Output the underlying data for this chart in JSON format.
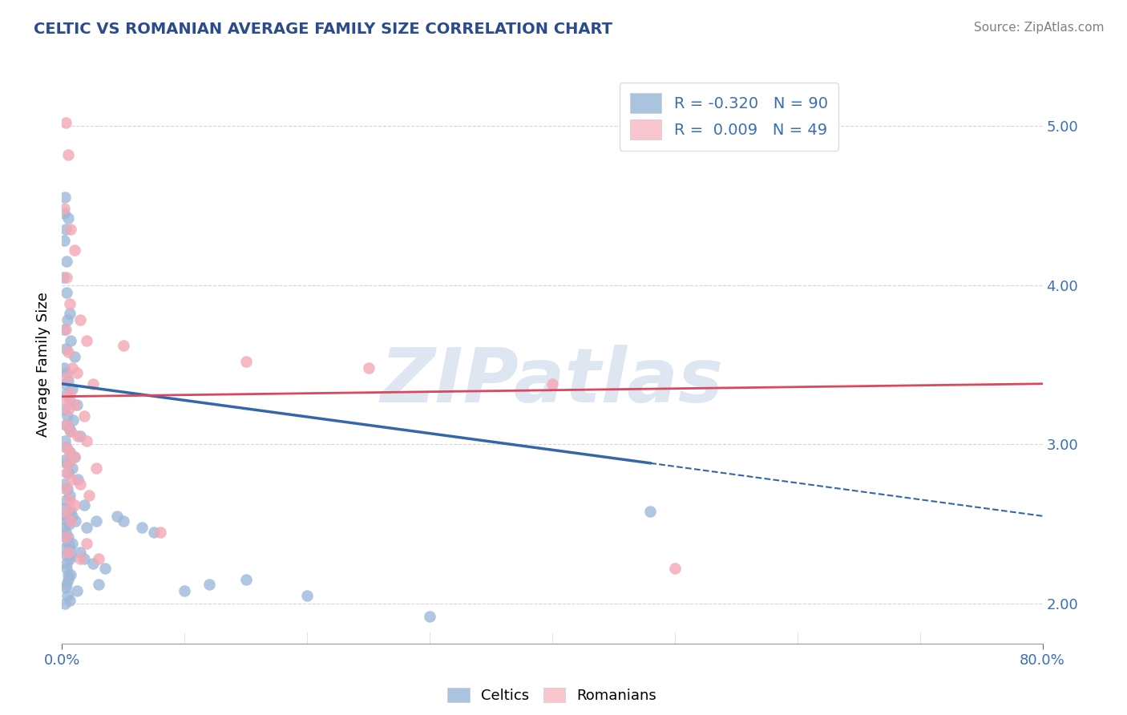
{
  "title": "CELTIC VS ROMANIAN AVERAGE FAMILY SIZE CORRELATION CHART",
  "source": "Source: ZipAtlas.com",
  "ylabel": "Average Family Size",
  "ylim": [
    1.75,
    5.25
  ],
  "xlim": [
    0.0,
    80.0
  ],
  "yticks": [
    2.0,
    3.0,
    4.0,
    5.0
  ],
  "legend_labels": [
    "Celtics",
    "Romanians"
  ],
  "legend_r": [
    -0.32,
    0.009
  ],
  "legend_n": [
    90,
    49
  ],
  "celtics_color": "#9eb8d9",
  "romanians_color": "#f4a7b5",
  "celtics_line_color": "#3466aa",
  "romanians_line_color": "#d9485e",
  "celtics_legend_color": "#aac4e0",
  "romanians_legend_color": "#f9c5ce",
  "watermark": "ZIPatlas",
  "watermark_color": "#c8d8e8",
  "celtics_line_x": [
    0.0,
    80.0
  ],
  "celtics_line_y": [
    3.38,
    2.55
  ],
  "celtics_solid_end_x": 48.0,
  "romanians_line_x": [
    0.0,
    80.0
  ],
  "romanians_line_y": [
    3.3,
    3.38
  ],
  "celtics_points": [
    [
      0.2,
      4.28
    ],
    [
      0.4,
      4.15
    ],
    [
      0.15,
      4.45
    ],
    [
      0.3,
      4.35
    ],
    [
      0.25,
      4.55
    ],
    [
      0.5,
      4.42
    ],
    [
      0.1,
      4.05
    ],
    [
      0.35,
      3.95
    ],
    [
      0.6,
      3.82
    ],
    [
      0.45,
      3.78
    ],
    [
      0.2,
      3.72
    ],
    [
      0.7,
      3.65
    ],
    [
      0.3,
      3.6
    ],
    [
      1.0,
      3.55
    ],
    [
      0.15,
      3.48
    ],
    [
      0.4,
      3.45
    ],
    [
      0.5,
      3.4
    ],
    [
      0.25,
      3.38
    ],
    [
      0.8,
      3.35
    ],
    [
      0.35,
      3.32
    ],
    [
      0.6,
      3.28
    ],
    [
      1.2,
      3.25
    ],
    [
      0.2,
      3.22
    ],
    [
      0.45,
      3.18
    ],
    [
      0.9,
      3.15
    ],
    [
      0.3,
      3.12
    ],
    [
      0.55,
      3.1
    ],
    [
      0.7,
      3.08
    ],
    [
      1.5,
      3.05
    ],
    [
      0.25,
      3.02
    ],
    [
      0.4,
      2.98
    ],
    [
      0.65,
      2.95
    ],
    [
      1.0,
      2.92
    ],
    [
      0.2,
      2.9
    ],
    [
      0.35,
      2.88
    ],
    [
      0.8,
      2.85
    ],
    [
      0.5,
      2.82
    ],
    [
      1.3,
      2.78
    ],
    [
      0.15,
      2.75
    ],
    [
      0.45,
      2.72
    ],
    [
      0.6,
      2.68
    ],
    [
      0.3,
      2.65
    ],
    [
      1.8,
      2.62
    ],
    [
      0.25,
      2.6
    ],
    [
      0.7,
      2.58
    ],
    [
      0.4,
      2.55
    ],
    [
      1.1,
      2.52
    ],
    [
      0.55,
      2.5
    ],
    [
      2.0,
      2.48
    ],
    [
      0.3,
      2.45
    ],
    [
      0.5,
      2.42
    ],
    [
      0.85,
      2.38
    ],
    [
      0.2,
      2.35
    ],
    [
      1.5,
      2.32
    ],
    [
      0.4,
      2.3
    ],
    [
      0.65,
      2.28
    ],
    [
      2.5,
      2.25
    ],
    [
      0.35,
      2.22
    ],
    [
      0.7,
      2.18
    ],
    [
      0.5,
      2.15
    ],
    [
      3.0,
      2.12
    ],
    [
      0.3,
      2.1
    ],
    [
      1.2,
      2.08
    ],
    [
      0.45,
      2.05
    ],
    [
      0.6,
      2.02
    ],
    [
      4.5,
      2.55
    ],
    [
      6.5,
      2.48
    ],
    [
      0.25,
      2.0
    ],
    [
      0.8,
      2.55
    ],
    [
      2.8,
      2.52
    ],
    [
      0.35,
      2.12
    ],
    [
      7.5,
      2.45
    ],
    [
      0.5,
      2.18
    ],
    [
      10.0,
      2.08
    ],
    [
      0.4,
      2.25
    ],
    [
      1.8,
      2.28
    ],
    [
      5.0,
      2.52
    ],
    [
      12.0,
      2.12
    ],
    [
      0.6,
      2.35
    ],
    [
      3.5,
      2.22
    ],
    [
      48.0,
      2.58
    ],
    [
      15.0,
      2.15
    ],
    [
      0.7,
      2.3
    ],
    [
      0.3,
      2.42
    ],
    [
      0.2,
      2.48
    ],
    [
      20.0,
      2.05
    ],
    [
      0.5,
      2.38
    ],
    [
      0.4,
      2.52
    ],
    [
      30.0,
      1.92
    ]
  ],
  "romanians_points": [
    [
      0.3,
      5.02
    ],
    [
      0.5,
      4.82
    ],
    [
      0.2,
      4.48
    ],
    [
      0.7,
      4.35
    ],
    [
      1.0,
      4.22
    ],
    [
      0.4,
      4.05
    ],
    [
      0.6,
      3.88
    ],
    [
      1.5,
      3.78
    ],
    [
      0.3,
      3.72
    ],
    [
      2.0,
      3.65
    ],
    [
      0.5,
      3.58
    ],
    [
      0.8,
      3.48
    ],
    [
      1.2,
      3.45
    ],
    [
      0.4,
      3.42
    ],
    [
      2.5,
      3.38
    ],
    [
      0.6,
      3.32
    ],
    [
      0.3,
      3.28
    ],
    [
      1.0,
      3.25
    ],
    [
      0.5,
      3.22
    ],
    [
      1.8,
      3.18
    ],
    [
      0.4,
      3.12
    ],
    [
      0.7,
      3.08
    ],
    [
      1.3,
      3.05
    ],
    [
      2.0,
      3.02
    ],
    [
      0.3,
      2.98
    ],
    [
      0.6,
      2.95
    ],
    [
      1.0,
      2.92
    ],
    [
      0.5,
      2.88
    ],
    [
      2.8,
      2.85
    ],
    [
      0.4,
      2.82
    ],
    [
      0.8,
      2.78
    ],
    [
      1.5,
      2.75
    ],
    [
      0.3,
      2.72
    ],
    [
      2.2,
      2.68
    ],
    [
      0.6,
      2.65
    ],
    [
      1.0,
      2.62
    ],
    [
      0.4,
      2.58
    ],
    [
      5.0,
      3.62
    ],
    [
      8.0,
      2.45
    ],
    [
      0.3,
      2.42
    ],
    [
      2.0,
      2.38
    ],
    [
      15.0,
      3.52
    ],
    [
      40.0,
      3.38
    ],
    [
      0.5,
      2.32
    ],
    [
      1.5,
      2.28
    ],
    [
      50.0,
      2.22
    ],
    [
      3.0,
      2.28
    ],
    [
      25.0,
      3.48
    ],
    [
      0.7,
      2.52
    ]
  ],
  "title_color": "#2b4b8c",
  "axis_color": "#3b6eb5",
  "grid_color": "#cccccc",
  "background_color": "#ffffff"
}
